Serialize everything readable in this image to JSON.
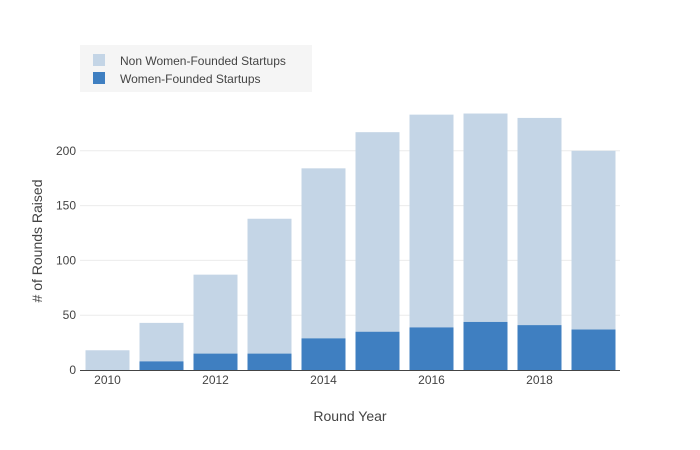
{
  "chart_data": {
    "type": "bar",
    "stacked": true,
    "xlabel": "Round Year",
    "ylabel": "# of Rounds Raised",
    "categories": [
      2010,
      2011,
      2012,
      2013,
      2014,
      2015,
      2016,
      2017,
      2018,
      2019
    ],
    "x_tick_labels": [
      "2010",
      "2012",
      "2014",
      "2016",
      "2018"
    ],
    "y_tick_labels": [
      "0",
      "50",
      "100",
      "150",
      "200"
    ],
    "ylim": [
      0,
      235
    ],
    "grid": true,
    "legend_position": "top-left",
    "series": [
      {
        "name": "Women-Founded Startups",
        "color": "#3f7fc1",
        "values": [
          0,
          8,
          15,
          15,
          29,
          35,
          39,
          44,
          41,
          37
        ]
      },
      {
        "name": "Non Women-Founded Startups",
        "color": "#c4d5e6",
        "values": [
          18,
          35,
          72,
          123,
          155,
          182,
          194,
          190,
          189,
          163
        ]
      }
    ],
    "legend_order": [
      "Non Women-Founded Startups",
      "Women-Founded Startups"
    ]
  }
}
